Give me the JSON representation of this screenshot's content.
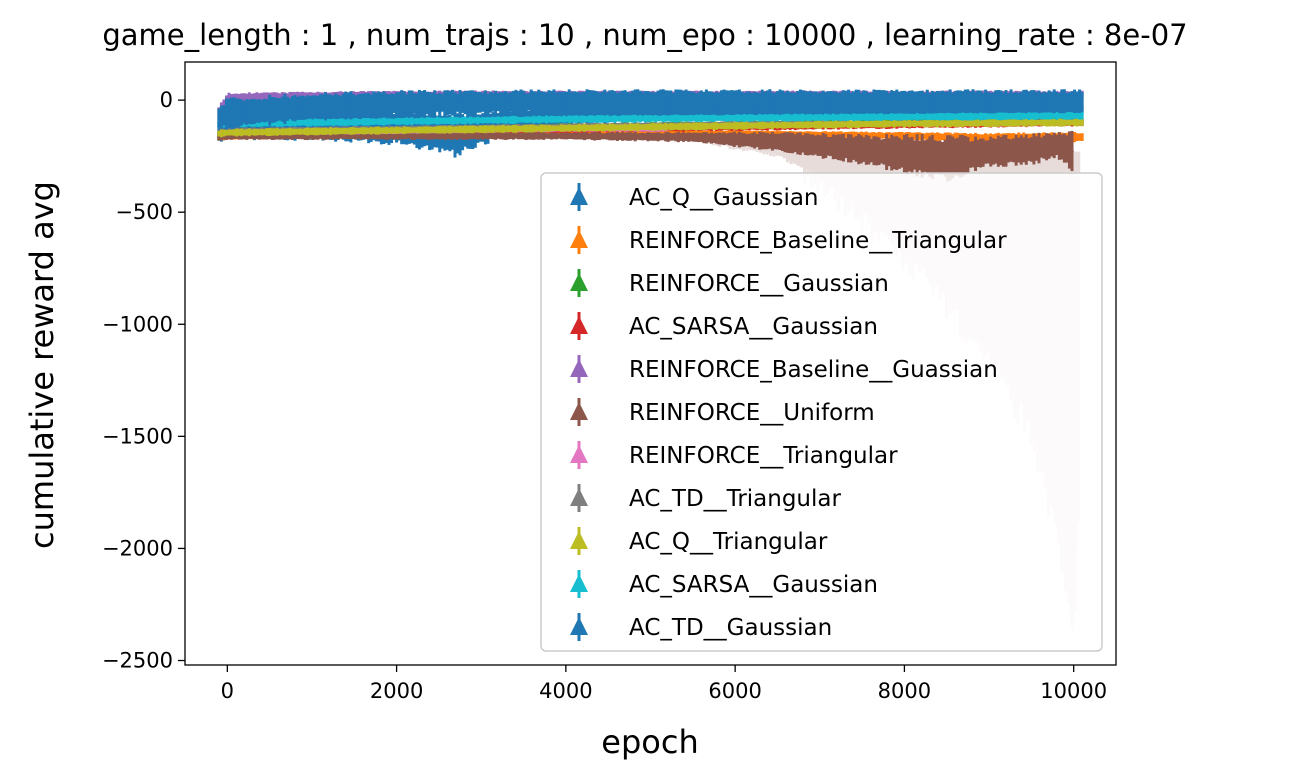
{
  "chart_data": {
    "type": "line",
    "title": "game_length : 1 , num_trajs : 10 , num_epo : 10000 , learning_rate : 8e-07",
    "xlabel": "epoch",
    "ylabel": "cumulative reward avg",
    "xlim": [
      -500,
      10500
    ],
    "ylim": [
      -2520,
      170
    ],
    "xticks": [
      0,
      2000,
      4000,
      6000,
      8000,
      10000
    ],
    "xtick_labels": [
      "0",
      "2000",
      "4000",
      "6000",
      "8000",
      "10000"
    ],
    "yticks": [
      0,
      -500,
      -1000,
      -1500,
      -2000,
      -2500
    ],
    "ytick_labels": [
      "0",
      "−500",
      "−1000",
      "−1500",
      "−2000",
      "−2500"
    ],
    "grid": false,
    "legend_position": "lower right",
    "series": [
      {
        "name": "AC_Q__Gaussian",
        "color": "#1f77b4",
        "x": [
          -100,
          0,
          1000,
          2000,
          2700,
          3500,
          5000,
          7000,
          10000,
          10100
        ],
        "y": [
          -140,
          -120,
          -110,
          -120,
          -150,
          -80,
          -60,
          -50,
          -45,
          -45
        ],
        "err": [
          40,
          50,
          60,
          70,
          90,
          40,
          30,
          25,
          25,
          25
        ]
      },
      {
        "name": "REINFORCE_Baseline__Triangular",
        "color": "#ff7f0e",
        "x": [
          -100,
          0,
          2000,
          4000,
          6000,
          8000,
          9000,
          10000,
          10100
        ],
        "y": [
          -170,
          -165,
          -160,
          -150,
          -145,
          -160,
          -170,
          -165,
          -165
        ],
        "err": [
          10,
          10,
          10,
          10,
          10,
          15,
          20,
          20,
          20
        ]
      },
      {
        "name": "REINFORCE__Gaussian",
        "color": "#2ca02c",
        "x": [
          -100,
          0,
          2000,
          4000,
          6000,
          8000,
          10000,
          10100
        ],
        "y": [
          -155,
          -150,
          -140,
          -120,
          -110,
          -100,
          -95,
          -95
        ],
        "err": [
          15,
          15,
          15,
          15,
          15,
          15,
          15,
          15
        ]
      },
      {
        "name": "AC_SARSA__Gaussian",
        "color": "#d62728",
        "x": [
          -100,
          0,
          2000,
          4000,
          6000,
          8000,
          10000,
          10100
        ],
        "y": [
          -160,
          -155,
          -140,
          -130,
          -120,
          -110,
          -100,
          -100
        ],
        "err": [
          15,
          15,
          15,
          15,
          15,
          15,
          15,
          15
        ]
      },
      {
        "name": "REINFORCE_Baseline__Guassian",
        "color": "#9467bd",
        "x": [
          -100,
          0,
          1000,
          2000,
          4000,
          6000,
          8000,
          10000,
          10100
        ],
        "y": [
          -60,
          10,
          20,
          25,
          25,
          25,
          25,
          25,
          25
        ],
        "err": [
          30,
          20,
          15,
          15,
          15,
          15,
          15,
          15,
          15
        ]
      },
      {
        "name": "REINFORCE__Uniform",
        "color": "#8c564b",
        "x": [
          -100,
          0,
          2000,
          4000,
          5500,
          6500,
          7500,
          8500,
          9000,
          9500,
          9800,
          10000
        ],
        "y": [
          -165,
          -160,
          -160,
          -160,
          -165,
          -185,
          -220,
          -260,
          -230,
          -220,
          -200,
          -230
        ],
        "err": [
          15,
          15,
          15,
          15,
          20,
          40,
          60,
          90,
          60,
          60,
          50,
          80
        ],
        "band": [
          [
            5500,
            -175
          ],
          [
            6500,
            -240
          ],
          [
            7000,
            -340
          ],
          [
            7500,
            -480
          ],
          [
            8000,
            -660
          ],
          [
            8500,
            -860
          ],
          [
            9000,
            -1120
          ],
          [
            9500,
            -1420
          ],
          [
            9800,
            -1900
          ],
          [
            10000,
            -2380
          ],
          [
            10060,
            -1800
          ]
        ]
      },
      {
        "name": "REINFORCE__Triangular",
        "color": "#e377c2",
        "x": [
          -100,
          0,
          2000,
          4000,
          5000,
          5200
        ],
        "y": [
          -150,
          -145,
          -140,
          -130,
          -130,
          -130
        ],
        "err": [
          10,
          10,
          10,
          10,
          10,
          10
        ]
      },
      {
        "name": "AC_TD__Triangular",
        "color": "#7f7f7f",
        "x": [
          -100,
          0,
          2000,
          4000,
          6000,
          8000,
          10000,
          10100
        ],
        "y": [
          -140,
          -135,
          -125,
          -115,
          -105,
          -100,
          -95,
          -95
        ],
        "err": [
          10,
          10,
          10,
          10,
          10,
          10,
          10,
          10
        ]
      },
      {
        "name": "AC_Q__Triangular",
        "color": "#bcbd22",
        "x": [
          -100,
          0,
          2000,
          4000,
          6000,
          8000,
          10000,
          10100
        ],
        "y": [
          -150,
          -145,
          -135,
          -125,
          -115,
          -105,
          -100,
          -100
        ],
        "err": [
          15,
          15,
          15,
          15,
          15,
          15,
          15,
          15
        ]
      },
      {
        "name": "AC_SARSA__Gaussian",
        "color": "#17becf",
        "x": [
          -100,
          0,
          2000,
          4000,
          6000,
          8000,
          10000,
          10100
        ],
        "y": [
          -110,
          -105,
          -95,
          -85,
          -80,
          -75,
          -70,
          -70
        ],
        "err": [
          15,
          15,
          15,
          15,
          15,
          15,
          15,
          15
        ]
      },
      {
        "name": "AC_TD__Gaussian",
        "color": "#1f77b4",
        "x": [
          -100,
          0,
          1000,
          2000,
          4000,
          6000,
          8000,
          10000,
          10100
        ],
        "y": [
          -80,
          -60,
          -30,
          -15,
          -5,
          -5,
          -5,
          -5,
          -5
        ],
        "err": [
          50,
          60,
          55,
          50,
          45,
          45,
          45,
          45,
          45
        ]
      }
    ]
  }
}
